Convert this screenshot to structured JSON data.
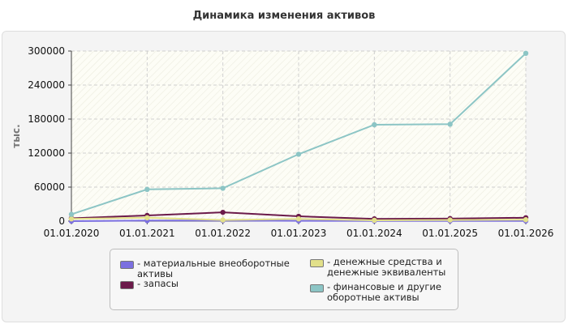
{
  "chart_data": {
    "type": "line",
    "title": "Динамика изменения активов",
    "ylabel": "тыс.",
    "xlabel": "",
    "categories": [
      "01.01.2020",
      "01.01.2021",
      "01.01.2022",
      "01.01.2023",
      "01.01.2024",
      "01.01.2025",
      "01.01.2026"
    ],
    "ylim": [
      0,
      300000
    ],
    "yticks": [
      "0",
      "60000",
      "120000",
      "180000",
      "240000",
      "300000"
    ],
    "grid": true,
    "legend_position": "bottom",
    "series": [
      {
        "name": "- материальные внеоборотные активы",
        "color": "#7b6fe0",
        "values": [
          0,
          1000,
          1000,
          500,
          300,
          300,
          300
        ]
      },
      {
        "name": "- запасы",
        "color": "#6b1a4a",
        "values": [
          5000,
          10000,
          15500,
          8500,
          4000,
          4500,
          6000
        ]
      },
      {
        "name": "- денежные средства и денежные эквиваленты",
        "color": "#e2e08a",
        "values": [
          4000,
          6000,
          2000,
          4000,
          1500,
          2000,
          2500
        ]
      },
      {
        "name": "- финансовые и другие оборотные активы",
        "color": "#8cc5c5",
        "values": [
          12000,
          56000,
          58000,
          118000,
          170000,
          171000,
          296000
        ]
      }
    ]
  },
  "legend": {
    "items": [
      {
        "label": "- материальные внеоборотные активы",
        "color": "#7b6fe0"
      },
      {
        "label": "- запасы",
        "color": "#6b1a4a"
      },
      {
        "label": "- денежные средства и денежные эквиваленты",
        "color": "#e2e08a"
      },
      {
        "label": "- финансовые и другие оборотные активы",
        "color": "#8cc5c5"
      }
    ]
  }
}
